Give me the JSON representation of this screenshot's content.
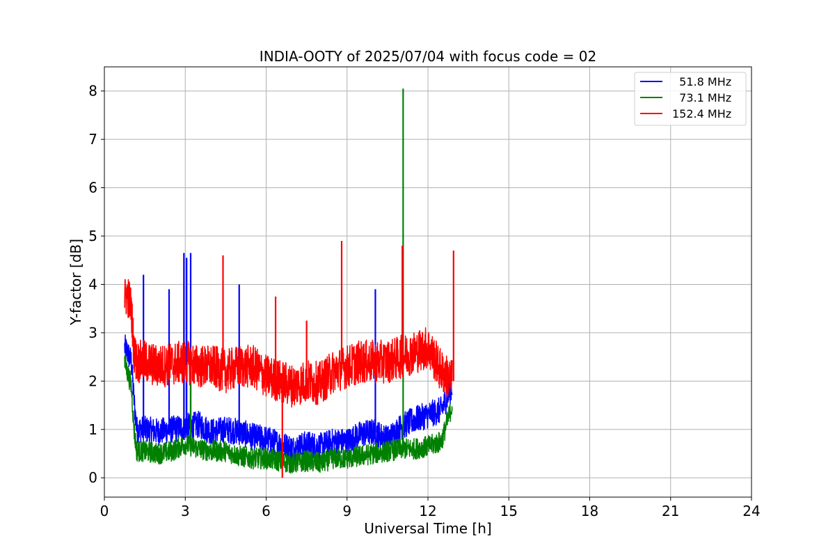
{
  "chart_data": {
    "type": "line",
    "title": "INDIA-OOTY of 2025/07/04 with focus code = 02",
    "xlabel": "Universal Time [h]",
    "ylabel": "Y-factor [dB]",
    "xlim": [
      0,
      24
    ],
    "ylim": [
      -0.4,
      8.5
    ],
    "xticks": [
      0,
      3,
      6,
      9,
      12,
      15,
      18,
      21,
      24
    ],
    "yticks": [
      0,
      1,
      2,
      3,
      4,
      5,
      6,
      7,
      8
    ],
    "grid": true,
    "legend_position": "top-right",
    "series": [
      {
        "name": "  51.8 MHz",
        "color": "#0000ff",
        "x": [
          0.75,
          0.85,
          1.0,
          1.1,
          1.2,
          1.5,
          2.0,
          2.5,
          3.0,
          3.5,
          4.0,
          4.5,
          5.0,
          5.5,
          6.0,
          6.5,
          7.0,
          7.5,
          8.0,
          8.5,
          9.0,
          9.5,
          10.0,
          10.5,
          11.0,
          11.5,
          12.0,
          12.5,
          12.9
        ],
        "y": [
          2.7,
          2.6,
          2.4,
          1.6,
          1.0,
          1.0,
          0.95,
          1.0,
          1.05,
          1.1,
          0.95,
          1.0,
          0.95,
          0.85,
          0.8,
          0.7,
          0.6,
          0.7,
          0.65,
          0.75,
          0.75,
          0.9,
          0.95,
          0.8,
          1.05,
          1.2,
          1.3,
          1.4,
          1.9
        ],
        "spikes": [
          [
            1.45,
            4.2
          ],
          [
            2.4,
            3.9
          ],
          [
            2.95,
            4.65
          ],
          [
            3.05,
            4.55
          ],
          [
            3.2,
            4.65
          ],
          [
            5.0,
            4.0
          ],
          [
            10.05,
            3.9
          ]
        ]
      },
      {
        "name": "  73.1 MHz",
        "color": "#008000",
        "x": [
          0.75,
          0.85,
          1.0,
          1.1,
          1.2,
          1.5,
          2.0,
          2.5,
          3.0,
          3.5,
          4.0,
          4.5,
          5.0,
          5.5,
          6.0,
          6.5,
          7.0,
          7.5,
          8.0,
          8.5,
          9.0,
          9.5,
          10.0,
          10.5,
          11.0,
          11.5,
          12.0,
          12.5,
          12.9
        ],
        "y": [
          2.4,
          2.2,
          1.9,
          1.0,
          0.55,
          0.55,
          0.5,
          0.55,
          0.7,
          0.6,
          0.55,
          0.55,
          0.45,
          0.4,
          0.4,
          0.35,
          0.3,
          0.35,
          0.3,
          0.4,
          0.4,
          0.45,
          0.5,
          0.55,
          0.6,
          0.6,
          0.65,
          0.75,
          1.5
        ],
        "spikes": [
          [
            3.2,
            2.2
          ],
          [
            11.08,
            8.05
          ]
        ]
      },
      {
        "name": "152.4 MHz",
        "color": "#ff0000",
        "x": [
          0.75,
          0.85,
          1.0,
          1.1,
          1.2,
          1.5,
          2.0,
          2.5,
          3.0,
          3.5,
          4.0,
          4.5,
          5.0,
          5.5,
          6.0,
          6.5,
          7.0,
          7.5,
          8.0,
          8.5,
          9.0,
          9.5,
          10.0,
          10.5,
          11.0,
          11.5,
          12.0,
          12.5,
          12.9
        ],
        "y": [
          3.7,
          3.8,
          3.5,
          2.6,
          2.4,
          2.4,
          2.3,
          2.35,
          2.4,
          2.3,
          2.3,
          2.2,
          2.3,
          2.3,
          2.1,
          2.0,
          1.9,
          2.0,
          1.95,
          2.2,
          2.3,
          2.4,
          2.4,
          2.4,
          2.5,
          2.6,
          2.7,
          2.2,
          2.0
        ],
        "spikes": [
          [
            4.4,
            4.6
          ],
          [
            6.35,
            3.75
          ],
          [
            6.6,
            0.0
          ],
          [
            7.5,
            3.25
          ],
          [
            8.8,
            4.9
          ],
          [
            11.05,
            4.8
          ],
          [
            12.95,
            4.7
          ]
        ]
      }
    ]
  }
}
